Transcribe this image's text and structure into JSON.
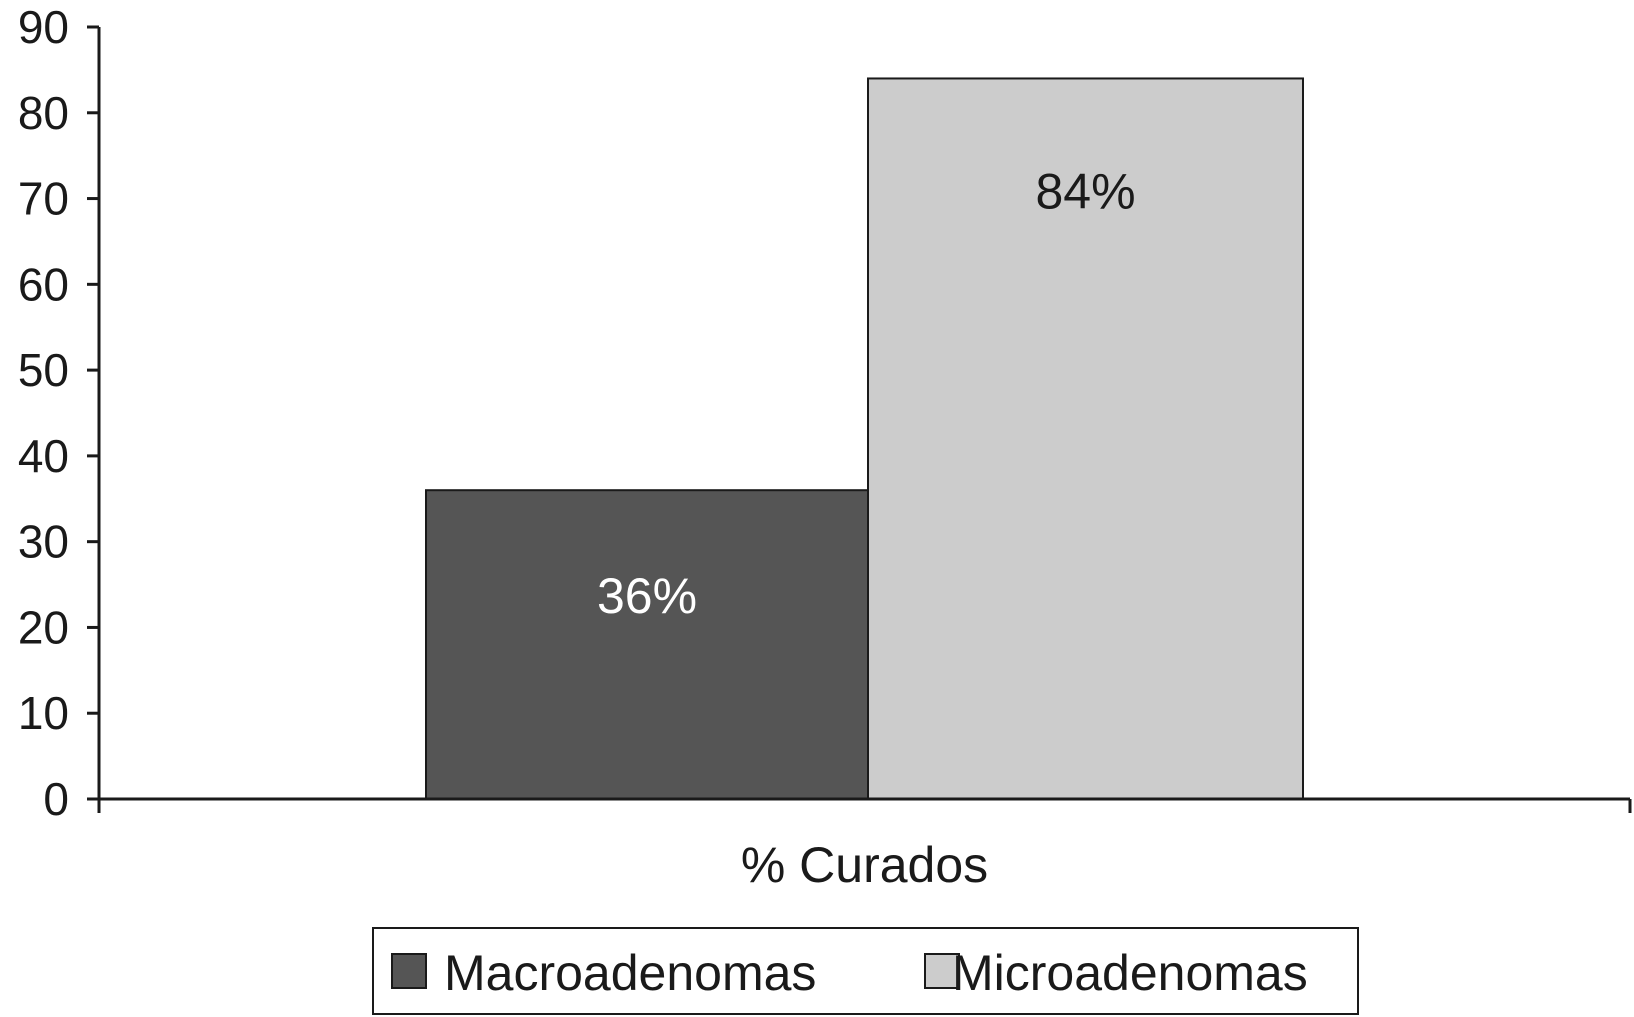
{
  "chart_data": {
    "type": "bar",
    "categories": [
      "% Curados"
    ],
    "series": [
      {
        "name": "Macroadenomas",
        "values": [
          36
        ],
        "label": "36%",
        "color": "#555555",
        "label_color": "#ffffff"
      },
      {
        "name": "Microadenomas",
        "values": [
          84
        ],
        "label": "84%",
        "color": "#cccccc",
        "label_color": "#1a1a1a"
      }
    ],
    "yticks": [
      "0",
      "10",
      "20",
      "30",
      "40",
      "50",
      "60",
      "70",
      "80",
      "90"
    ],
    "ylim": [
      0,
      90
    ],
    "title": "",
    "xlabel": "",
    "ylabel": "",
    "grid": false,
    "legend_position": "bottom"
  }
}
